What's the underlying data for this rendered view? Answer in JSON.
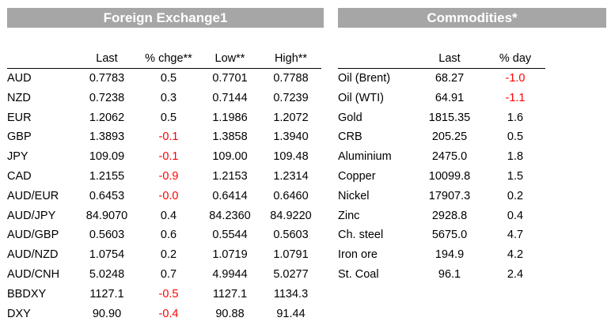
{
  "fx": {
    "title": "Foreign Exchange1",
    "headers": [
      "",
      "Last",
      "% chge**",
      "Low**",
      "High**"
    ],
    "rows": [
      [
        "AUD",
        "0.7783",
        "0.5",
        "0.7701",
        "0.7788"
      ],
      [
        "NZD",
        "0.7238",
        "0.3",
        "0.7144",
        "0.7239"
      ],
      [
        "EUR",
        "1.2062",
        "0.5",
        "1.1986",
        "1.2072"
      ],
      [
        "GBP",
        "1.3893",
        "-0.1",
        "1.3858",
        "1.3940"
      ],
      [
        "JPY",
        "109.09",
        "-0.1",
        "109.00",
        "109.48"
      ],
      [
        "CAD",
        "1.2155",
        "-0.9",
        "1.2153",
        "1.2314"
      ],
      [
        "AUD/EUR",
        "0.6453",
        "-0.0",
        "0.6414",
        "0.6460"
      ],
      [
        "AUD/JPY",
        "84.9070",
        "0.4",
        "84.2360",
        "84.9220"
      ],
      [
        "AUD/GBP",
        "0.5603",
        "0.6",
        "0.5544",
        "0.5603"
      ],
      [
        "AUD/NZD",
        "1.0754",
        "0.2",
        "1.0719",
        "1.0791"
      ],
      [
        "AUD/CNH",
        "5.0248",
        "0.7",
        "4.9944",
        "5.0277"
      ],
      [
        "BBDXY",
        "1127.1",
        "-0.5",
        "1127.1",
        "1134.3"
      ],
      [
        "DXY",
        "90.90",
        "-0.4",
        "90.88",
        "91.44"
      ]
    ]
  },
  "commodities": {
    "title": "Commodities*",
    "headers": [
      "",
      "Last",
      "% day"
    ],
    "rows": [
      [
        "Oil (Brent)",
        "68.27",
        "-1.0"
      ],
      [
        "Oil (WTI)",
        "64.91",
        "-1.1"
      ],
      [
        "Gold",
        "1815.35",
        "1.6"
      ],
      [
        "CRB",
        "205.25",
        "0.5"
      ],
      [
        "Aluminium",
        "2475.0",
        "1.8"
      ],
      [
        "Copper",
        "10099.8",
        "1.5"
      ],
      [
        "Nickel",
        "17907.3",
        "0.2"
      ],
      [
        "Zinc",
        "2928.8",
        "0.4"
      ],
      [
        "Ch. steel",
        "5675.0",
        "4.7"
      ],
      [
        "Iron ore",
        "194.9",
        "4.2"
      ],
      [
        "St. Coal",
        "96.1",
        "2.4"
      ]
    ]
  },
  "colors": {
    "banner": "#a6a6a6",
    "negative": "#ff0000"
  }
}
